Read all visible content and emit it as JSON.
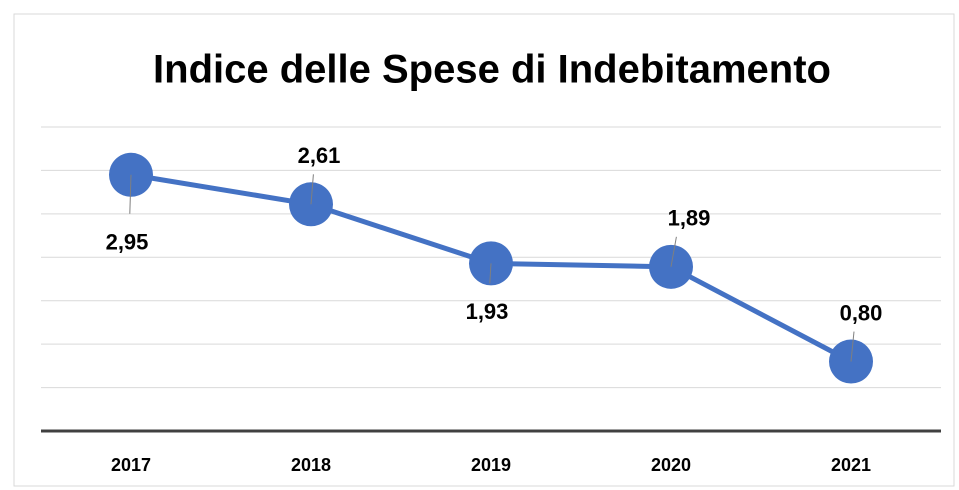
{
  "chart_data": {
    "type": "line",
    "title": "Indice delle Spese di Indebitamento",
    "categories": [
      "2017",
      "2018",
      "2019",
      "2020",
      "2021"
    ],
    "series": [
      {
        "name": "Indice",
        "color": "#4472c4",
        "values": [
          2.95,
          2.61,
          1.93,
          1.89,
          0.8
        ],
        "value_labels": [
          "2,95",
          "2,61",
          "1,93",
          "1,89",
          "0,80"
        ]
      }
    ],
    "ylim": [
      0,
      3.5
    ],
    "yticks": [
      0,
      0.5,
      1,
      1.5,
      2,
      2.5,
      3,
      3.5
    ],
    "grid": true
  }
}
